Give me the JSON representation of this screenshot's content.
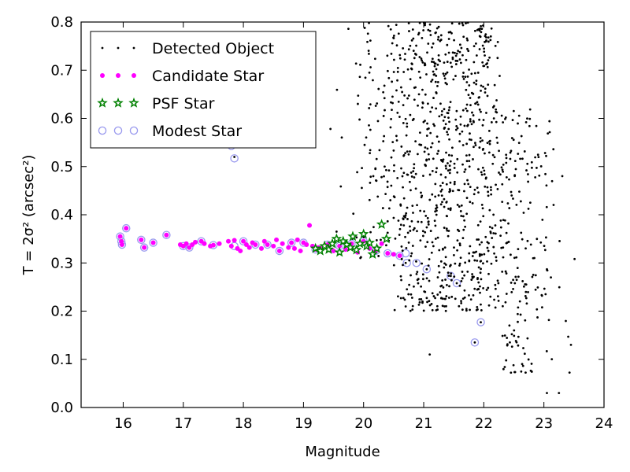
{
  "chart_data": {
    "type": "scatter",
    "xlabel": "Magnitude",
    "ylabel": "T = 2σ² (arcsec²)",
    "xlim": [
      15.3,
      24
    ],
    "ylim": [
      0.0,
      0.8
    ],
    "x_ticks": [
      16,
      17,
      18,
      19,
      20,
      21,
      22,
      23,
      24
    ],
    "y_ticks": [
      0.0,
      0.1,
      0.2,
      0.3,
      0.4,
      0.5,
      0.6,
      0.7,
      0.8
    ],
    "grid": false,
    "legend_position": "top-left",
    "legend": [
      {
        "label": "Detected Object",
        "marker": "dot",
        "color": "#000000"
      },
      {
        "label": "Candidate Star",
        "marker": "circle",
        "color": "#ff00ff"
      },
      {
        "label": "PSF Star",
        "marker": "star",
        "color": "#008000"
      },
      {
        "label": "Modest Star",
        "marker": "open-circle",
        "color": "#9999ee"
      }
    ],
    "series": [
      {
        "name": "Candidate Star",
        "marker_color": "#ff00ff",
        "x": [
          15.95,
          15.97,
          15.98,
          16.05,
          16.3,
          16.35,
          16.5,
          16.72,
          16.95,
          17.0,
          17.05,
          17.1,
          17.15,
          17.2,
          17.3,
          17.35,
          17.45,
          17.5,
          17.6,
          17.75,
          17.8,
          17.85,
          17.9,
          17.95,
          18.0,
          18.05,
          18.1,
          18.15,
          18.2,
          18.3,
          18.35,
          18.4,
          18.5,
          18.55,
          18.6,
          18.65,
          18.75,
          18.8,
          18.85,
          18.9,
          18.95,
          19.0,
          19.05,
          19.1,
          19.15,
          19.2,
          19.25,
          19.3,
          19.4,
          19.5,
          19.6,
          19.7,
          19.8,
          19.9,
          20.0,
          20.1,
          20.2,
          20.3,
          20.4,
          20.5,
          20.6
        ],
        "y": [
          0.355,
          0.345,
          0.338,
          0.372,
          0.348,
          0.332,
          0.342,
          0.358,
          0.338,
          0.335,
          0.34,
          0.332,
          0.338,
          0.343,
          0.345,
          0.34,
          0.335,
          0.337,
          0.34,
          0.345,
          0.335,
          0.347,
          0.33,
          0.325,
          0.345,
          0.338,
          0.332,
          0.342,
          0.338,
          0.33,
          0.345,
          0.338,
          0.335,
          0.348,
          0.325,
          0.34,
          0.332,
          0.342,
          0.33,
          0.348,
          0.325,
          0.342,
          0.338,
          0.378,
          0.335,
          0.328,
          0.332,
          0.33,
          0.338,
          0.325,
          0.335,
          0.328,
          0.34,
          0.322,
          0.345,
          0.33,
          0.325,
          0.34,
          0.32,
          0.318,
          0.315
        ]
      },
      {
        "name": "PSF Star",
        "marker_color": "#008000",
        "x": [
          19.2,
          19.28,
          19.35,
          19.42,
          19.48,
          19.55,
          19.6,
          19.66,
          19.72,
          19.78,
          19.82,
          19.88,
          19.94,
          20.0,
          20.05,
          20.1,
          20.15,
          20.22,
          20.3,
          20.38
        ],
        "y": [
          0.33,
          0.325,
          0.335,
          0.328,
          0.34,
          0.35,
          0.322,
          0.345,
          0.338,
          0.332,
          0.355,
          0.327,
          0.34,
          0.36,
          0.335,
          0.342,
          0.318,
          0.33,
          0.38,
          0.35
        ]
      },
      {
        "name": "Modest Star",
        "marker_color": "#9999ee",
        "x": [
          15.95,
          15.97,
          15.98,
          16.05,
          16.3,
          16.35,
          16.5,
          16.72,
          17.0,
          17.1,
          17.3,
          17.5,
          17.8,
          17.85,
          17.85,
          18.0,
          18.2,
          18.4,
          18.6,
          18.8,
          19.0,
          19.2,
          19.4,
          19.6,
          19.8,
          20.0,
          20.2,
          20.4,
          20.6,
          20.7,
          20.72,
          20.88,
          21.05,
          21.45,
          21.55,
          21.85,
          21.95
        ],
        "y": [
          0.355,
          0.345,
          0.338,
          0.372,
          0.348,
          0.332,
          0.342,
          0.358,
          0.335,
          0.332,
          0.345,
          0.337,
          0.543,
          0.517,
          0.335,
          0.345,
          0.338,
          0.338,
          0.325,
          0.342,
          0.342,
          0.328,
          0.338,
          0.335,
          0.34,
          0.345,
          0.325,
          0.32,
          0.315,
          0.32,
          0.3,
          0.3,
          0.287,
          0.273,
          0.258,
          0.135,
          0.177
        ]
      }
    ]
  }
}
